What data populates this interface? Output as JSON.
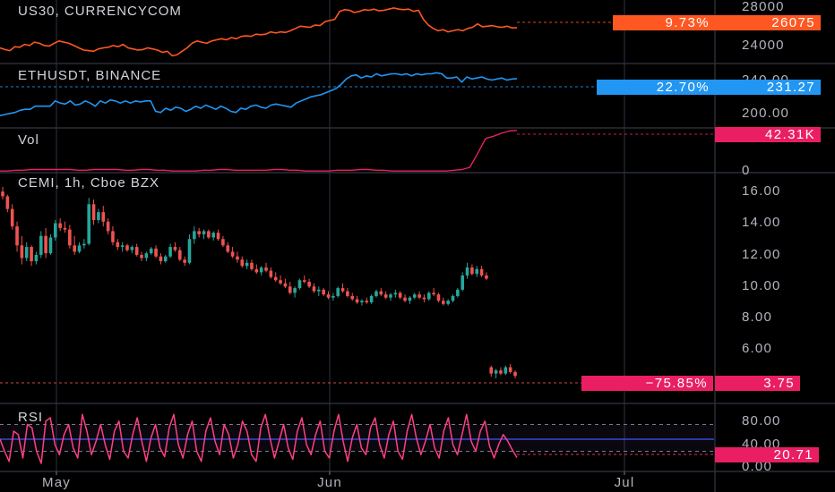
{
  "chart_data": {
    "type": "line",
    "x_labels": [
      "May",
      "Jun",
      "Jul"
    ],
    "panels": [
      {
        "name": "us30",
        "title": "US30, CURRENCYCOM",
        "type": "line",
        "color": "#ff5722",
        "y_ticks": [
          "28000",
          "24000"
        ],
        "badge_change": "9.73%",
        "badge_value": "26075",
        "values": [
          24300,
          24150,
          24050,
          24400,
          24350,
          24600,
          24500,
          24800,
          24700,
          24500,
          24450,
          24700,
          24900,
          24800,
          24700,
          24500,
          24300,
          24100,
          24050,
          24000,
          24200,
          24300,
          24350,
          24500,
          24400,
          24600,
          24300,
          24200,
          24100,
          24150,
          24300,
          24200,
          24100,
          23900,
          24000,
          23600,
          23700,
          24000,
          24300,
          24700,
          24900,
          24800,
          24700,
          24900,
          25000,
          25100,
          25000,
          25200,
          25100,
          25300,
          25350,
          25300,
          25500,
          25450,
          25500,
          25700,
          25600,
          25700,
          25650,
          25800,
          26000,
          26200,
          26150,
          26100,
          26300,
          26250,
          26600,
          26700,
          26800,
          27500,
          27650,
          27600,
          27400,
          27500,
          27650,
          27600,
          27700,
          27550,
          27600,
          27700,
          27800,
          27700,
          27650,
          27700,
          27500,
          27600,
          26800,
          26300,
          26000,
          25800,
          25900,
          25700,
          25800,
          25900,
          25800,
          26000,
          26100,
          26400,
          26150,
          26200,
          26250,
          26150,
          26100,
          26200,
          26050,
          26075
        ]
      },
      {
        "name": "ethusdt",
        "title": "ETHUSDT, BINANCE",
        "type": "line",
        "color": "#2196f3",
        "y_ticks": [
          "240.00",
          "200.00"
        ],
        "badge_change": "22.70%",
        "badge_value": "231.27",
        "values": [
          196,
          197,
          198,
          199,
          201,
          202,
          202,
          205,
          205,
          205,
          205,
          210,
          208,
          207,
          210,
          206,
          207,
          210,
          208,
          205,
          210,
          208,
          211,
          210,
          208,
          210,
          208,
          210,
          209,
          210,
          210,
          200,
          199,
          203,
          201,
          204,
          203,
          200,
          202,
          205,
          203,
          206,
          204,
          202,
          205,
          203,
          200,
          199,
          203,
          202,
          205,
          206,
          204,
          203,
          206,
          207,
          206,
          205,
          204,
          208,
          210,
          212,
          214,
          215,
          216,
          218,
          220,
          222,
          226,
          231,
          234,
          235,
          232,
          234,
          233,
          236,
          234,
          235,
          236,
          236,
          235,
          236,
          234,
          236,
          235,
          236,
          236,
          237,
          236,
          232,
          232,
          233,
          228,
          233,
          231,
          232,
          233,
          231,
          230,
          231,
          232,
          230,
          231,
          231.27
        ]
      },
      {
        "name": "vol",
        "title": "Vol",
        "type": "line",
        "color": "#e91e63",
        "y_ticks": [
          "0"
        ],
        "badge_value": "42.31K",
        "values": [
          1,
          1,
          2,
          2,
          3,
          3,
          3,
          3,
          3,
          3,
          2,
          2,
          3,
          3,
          3,
          3,
          2,
          2,
          3,
          3,
          2,
          2,
          1,
          1,
          1,
          1,
          2,
          2,
          3,
          3,
          2,
          2,
          2,
          2,
          2,
          3,
          3,
          2,
          2,
          1,
          1,
          1,
          1,
          2,
          2,
          2,
          3,
          3,
          2,
          2,
          1,
          1,
          1,
          1,
          1,
          1,
          1,
          1,
          2,
          3,
          6,
          25,
          45,
          48,
          52,
          55,
          56
        ]
      },
      {
        "name": "cemi",
        "title": "CEMI, 1h, Cboe BZX",
        "type": "candlestick",
        "up_color": "#26a69a",
        "down_color": "#ef5350",
        "y_ticks": [
          "16.00",
          "14.00",
          "12.00",
          "10.00",
          "8.00",
          "6.00"
        ],
        "badge_change": "−75.85%",
        "badge_value": "3.75",
        "ohlc": [
          [
            15.4,
            15.7,
            14.9,
            15.1
          ],
          [
            15.1,
            15.2,
            14.1,
            14.3
          ],
          [
            14.3,
            14.6,
            13.0,
            13.2
          ],
          [
            13.2,
            13.5,
            11.6,
            12.0
          ],
          [
            12.0,
            12.6,
            10.8,
            11.2
          ],
          [
            11.2,
            12.2,
            11.0,
            11.9
          ],
          [
            11.9,
            12.0,
            10.7,
            11.0
          ],
          [
            11.0,
            11.6,
            10.8,
            11.4
          ],
          [
            11.4,
            12.9,
            11.2,
            12.6
          ],
          [
            12.6,
            13.1,
            11.2,
            11.5
          ],
          [
            11.5,
            12.7,
            11.4,
            12.5
          ],
          [
            12.5,
            13.6,
            12.3,
            13.4
          ],
          [
            13.4,
            13.7,
            12.9,
            13.1
          ],
          [
            13.1,
            13.5,
            12.8,
            13.0
          ],
          [
            13.0,
            13.3,
            11.8,
            12.0
          ],
          [
            12.0,
            12.6,
            11.4,
            11.6
          ],
          [
            11.6,
            12.2,
            11.5,
            12.0
          ],
          [
            12.0,
            12.4,
            11.8,
            12.1
          ],
          [
            12.1,
            15.0,
            12.0,
            14.6
          ],
          [
            14.6,
            14.9,
            13.3,
            13.6
          ],
          [
            13.6,
            14.3,
            13.4,
            14.1
          ],
          [
            14.1,
            14.5,
            13.2,
            13.5
          ],
          [
            13.5,
            13.7,
            12.7,
            12.9
          ],
          [
            12.9,
            13.2,
            12.0,
            12.2
          ],
          [
            12.2,
            12.4,
            11.7,
            11.9
          ],
          [
            11.9,
            12.2,
            11.6,
            12.0
          ],
          [
            12.0,
            12.1,
            11.6,
            11.7
          ],
          [
            11.7,
            12.0,
            11.5,
            11.9
          ],
          [
            11.9,
            12.1,
            11.3,
            11.4
          ],
          [
            11.4,
            11.6,
            11.0,
            11.2
          ],
          [
            11.2,
            11.6,
            11.0,
            11.5
          ],
          [
            11.5,
            11.9,
            11.4,
            11.8
          ],
          [
            11.8,
            12.0,
            11.2,
            11.3
          ],
          [
            11.3,
            11.5,
            10.8,
            11.0
          ],
          [
            11.0,
            11.4,
            10.9,
            11.3
          ],
          [
            11.3,
            12.1,
            11.2,
            11.9
          ],
          [
            11.9,
            12.2,
            11.6,
            11.7
          ],
          [
            11.7,
            11.9,
            11.0,
            11.1
          ],
          [
            11.1,
            11.3,
            10.7,
            10.9
          ],
          [
            10.9,
            12.7,
            10.8,
            12.4
          ],
          [
            12.4,
            13.2,
            12.1,
            12.9
          ],
          [
            12.9,
            13.1,
            12.5,
            12.7
          ],
          [
            12.7,
            13.0,
            12.4,
            12.9
          ],
          [
            12.9,
            13.0,
            12.4,
            12.5
          ],
          [
            12.5,
            12.9,
            12.3,
            12.8
          ],
          [
            12.8,
            13.0,
            12.3,
            12.4
          ],
          [
            12.4,
            12.6,
            11.9,
            12.0
          ],
          [
            12.0,
            12.2,
            11.5,
            11.6
          ],
          [
            11.6,
            11.9,
            11.2,
            11.3
          ],
          [
            11.3,
            11.6,
            10.9,
            11.1
          ],
          [
            11.1,
            11.3,
            10.6,
            10.7
          ],
          [
            10.7,
            11.1,
            10.5,
            10.9
          ],
          [
            10.9,
            11.1,
            10.4,
            10.5
          ],
          [
            10.5,
            10.8,
            10.2,
            10.3
          ],
          [
            10.3,
            10.7,
            10.1,
            10.6
          ],
          [
            10.6,
            10.9,
            10.3,
            10.4
          ],
          [
            10.4,
            10.6,
            9.9,
            10.0
          ],
          [
            10.0,
            10.3,
            9.7,
            9.8
          ],
          [
            9.8,
            10.1,
            9.5,
            9.6
          ],
          [
            9.6,
            9.9,
            9.3,
            9.4
          ],
          [
            9.4,
            9.7,
            8.9,
            9.0
          ],
          [
            9.0,
            9.4,
            8.7,
            9.3
          ],
          [
            9.3,
            9.9,
            9.2,
            9.8
          ],
          [
            9.8,
            10.1,
            9.6,
            9.7
          ],
          [
            9.7,
            9.9,
            9.3,
            9.4
          ],
          [
            9.4,
            9.6,
            9.0,
            9.1
          ],
          [
            9.1,
            9.4,
            8.8,
            9.2
          ],
          [
            9.2,
            9.3,
            8.8,
            8.9
          ],
          [
            8.9,
            9.1,
            8.6,
            8.7
          ],
          [
            8.7,
            9.0,
            8.5,
            8.8
          ],
          [
            8.8,
            9.4,
            8.7,
            9.3
          ],
          [
            9.3,
            9.6,
            9.0,
            9.1
          ],
          [
            9.1,
            9.3,
            8.7,
            8.8
          ],
          [
            8.8,
            9.0,
            8.5,
            8.6
          ],
          [
            8.6,
            8.8,
            8.3,
            8.4
          ],
          [
            8.4,
            8.6,
            8.2,
            8.5
          ],
          [
            8.5,
            8.7,
            8.3,
            8.4
          ],
          [
            8.4,
            8.9,
            8.3,
            8.8
          ],
          [
            8.8,
            9.2,
            8.7,
            9.1
          ],
          [
            9.1,
            9.3,
            8.8,
            8.9
          ],
          [
            8.9,
            9.1,
            8.6,
            8.7
          ],
          [
            8.7,
            9.0,
            8.5,
            8.9
          ],
          [
            8.9,
            9.2,
            8.7,
            9.0
          ],
          [
            9.0,
            9.1,
            8.6,
            8.7
          ],
          [
            8.7,
            8.9,
            8.4,
            8.5
          ],
          [
            8.5,
            8.8,
            8.3,
            8.7
          ],
          [
            8.7,
            9.0,
            8.6,
            8.9
          ],
          [
            8.9,
            9.1,
            8.6,
            8.7
          ],
          [
            8.7,
            8.9,
            8.4,
            8.6
          ],
          [
            8.6,
            9.1,
            8.5,
            9.0
          ],
          [
            9.0,
            9.3,
            8.8,
            8.9
          ],
          [
            8.9,
            9.0,
            8.4,
            8.5
          ],
          [
            8.5,
            8.7,
            8.2,
            8.3
          ],
          [
            8.3,
            8.6,
            8.2,
            8.5
          ],
          [
            8.5,
            8.9,
            8.4,
            8.8
          ],
          [
            8.8,
            9.3,
            8.7,
            9.2
          ],
          [
            9.2,
            10.3,
            9.1,
            10.1
          ],
          [
            10.1,
            10.9,
            9.9,
            10.6
          ],
          [
            10.6,
            10.8,
            10.1,
            10.2
          ],
          [
            10.2,
            10.7,
            10.0,
            10.5
          ],
          [
            10.5,
            10.7,
            10.0,
            10.1
          ],
          [
            10.1,
            10.3,
            9.8,
            9.9
          ],
          [
            4.3,
            4.4,
            3.7,
            3.9
          ],
          [
            3.9,
            4.2,
            3.6,
            4.1
          ],
          [
            4.1,
            4.3,
            3.8,
            3.9
          ],
          [
            3.9,
            4.4,
            3.8,
            4.3
          ],
          [
            4.3,
            4.5,
            3.9,
            4.0
          ],
          [
            4.0,
            4.1,
            3.6,
            3.75
          ]
        ]
      },
      {
        "name": "rsi",
        "title": "RSI",
        "type": "line",
        "color": "#ff4081",
        "y_ticks": [
          "80.00",
          "40.00",
          "0.00"
        ],
        "upper_band": 70,
        "lower_band": 30,
        "badge_value": "20.71",
        "values": [
          48,
          30,
          15,
          60,
          55,
          20,
          70,
          65,
          30,
          12,
          75,
          80,
          40,
          25,
          55,
          70,
          35,
          20,
          85,
          60,
          25,
          45,
          70,
          40,
          18,
          60,
          75,
          30,
          20,
          55,
          80,
          45,
          15,
          50,
          70,
          35,
          22,
          65,
          85,
          40,
          20,
          55,
          75,
          30,
          15,
          60,
          80,
          45,
          25,
          70,
          55,
          20,
          40,
          75,
          60,
          25,
          15,
          65,
          85,
          50,
          20,
          45,
          70,
          35,
          18,
          60,
          80,
          40,
          25,
          55,
          75,
          30,
          20,
          60,
          85,
          45,
          15,
          50,
          70,
          35,
          25,
          65,
          80,
          40,
          20,
          55,
          75,
          30,
          18,
          60,
          85,
          50,
          25,
          45,
          70,
          35,
          20,
          60,
          80,
          40,
          25,
          55,
          85,
          45,
          30,
          60,
          75,
          38,
          20,
          40,
          55,
          45,
          32,
          20.71
        ]
      }
    ]
  }
}
